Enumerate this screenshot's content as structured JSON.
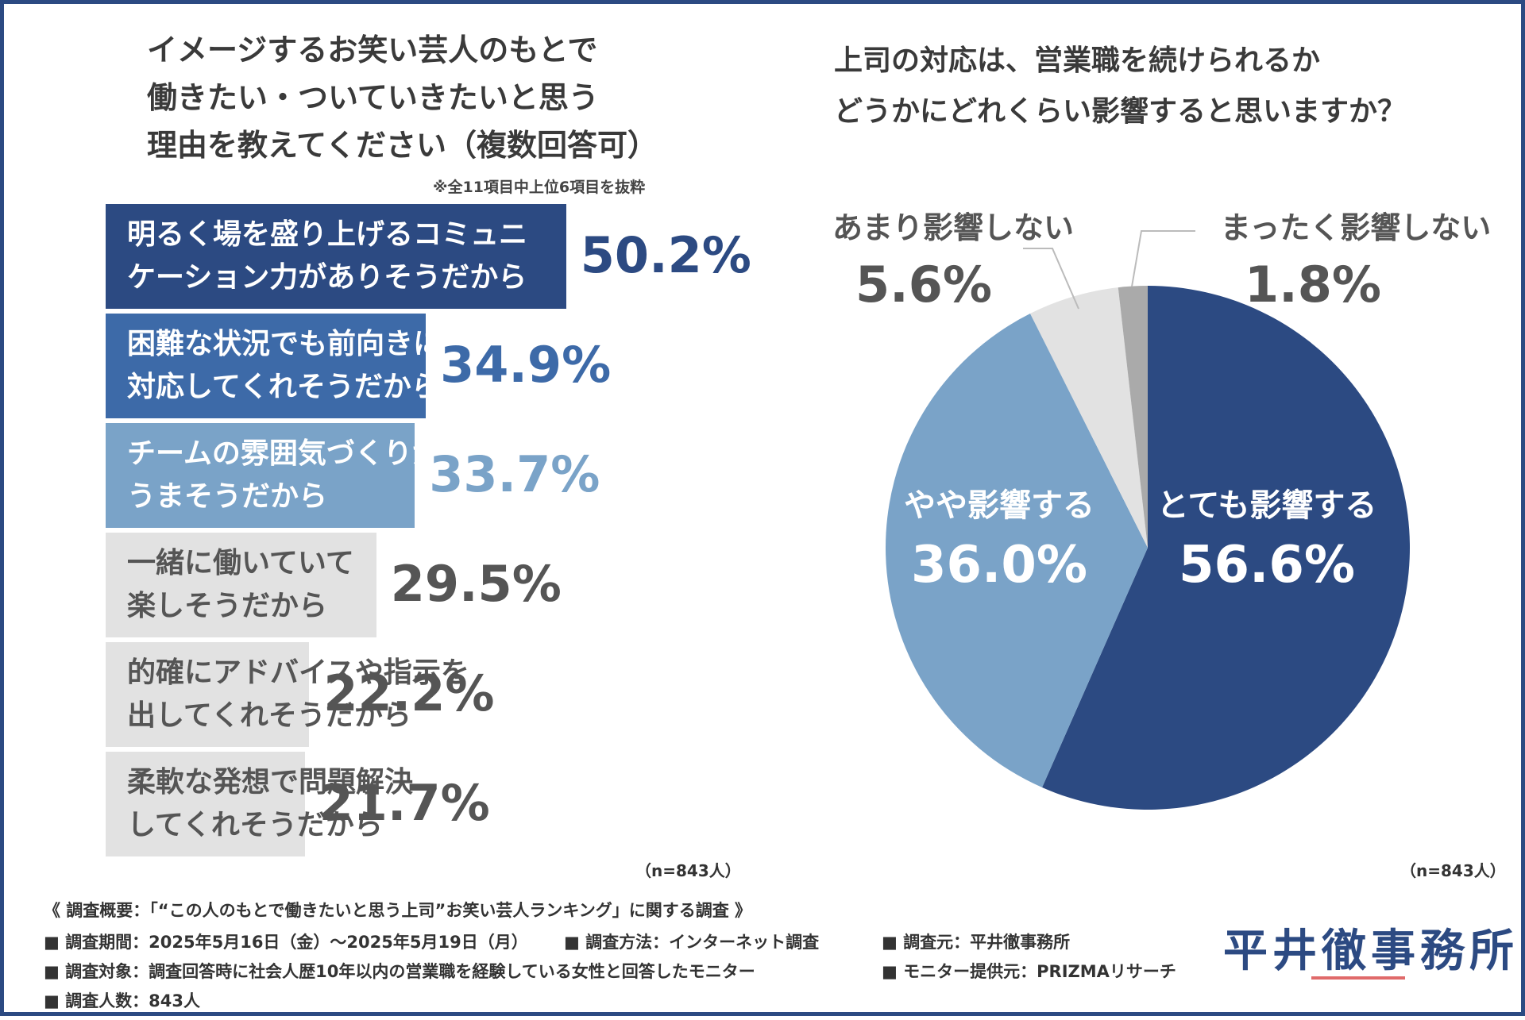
{
  "left_chart": {
    "title_lines": [
      "イメージするお笑い芸人のもとで",
      "働きたい・ついていきたいと思う",
      "理由を教えてください（複数回答可）"
    ],
    "note": "※全11項目中上位6項目を抜粋",
    "sample": "（n=843人）"
  },
  "right_chart": {
    "title_lines": [
      "上司の対応は、営業職を続けられるか",
      "どうかにどれくらい影響すると思いますか？"
    ],
    "sample": "（n=843人）"
  },
  "chart_data": [
    {
      "type": "bar",
      "orientation": "horizontal",
      "title": "イメージするお笑い芸人のもとで働きたい・ついていきたいと思う理由を教えてください（複数回答可）",
      "categories": [
        [
          "明るく場を盛り上げるコミュニ",
          "ケーション力がありそうだから"
        ],
        [
          "困難な状況でも前向きに",
          "対応してくれそうだから"
        ],
        [
          "チームの雰囲気づくりが",
          "うまそうだから"
        ],
        [
          "一緒に働いていて",
          "楽しそうだから"
        ],
        [
          "的確にアドバイスや指示を",
          "出してくれそうだから"
        ],
        [
          "柔軟な発想で問題解決",
          "してくれそうだから"
        ]
      ],
      "values": [
        50.2,
        34.9,
        33.7,
        29.5,
        22.2,
        21.7
      ],
      "value_labels": [
        "50.2%",
        "34.9%",
        "33.7%",
        "29.5%",
        "22.2%",
        "21.7%"
      ],
      "colors": [
        "#2c4a82",
        "#3d6aa8",
        "#7aa3c8",
        "#e2e2e2",
        "#e2e2e2",
        "#e2e2e2"
      ],
      "label_colors": [
        "#ffffff",
        "#ffffff",
        "#ffffff",
        "#555555",
        "#555555",
        "#555555"
      ],
      "value_colors": [
        "#2c4a82",
        "#3d6aa8",
        "#7aa3c8",
        "#555555",
        "#555555",
        "#555555"
      ]
    },
    {
      "type": "pie",
      "title": "上司の対応は、営業職を続けられるかどうかにどれくらい影響すると思いますか？",
      "slices": [
        {
          "label": "とても影響する",
          "value": 56.6,
          "value_label": "56.6%",
          "color": "#2c4a82"
        },
        {
          "label": "やや影響する",
          "value": 36.0,
          "value_label": "36.0%",
          "color": "#7aa3c8"
        },
        {
          "label": "あまり影響しない",
          "value": 5.6,
          "value_label": "5.6%",
          "color": "#e2e2e2"
        },
        {
          "label": "まったく影響しない",
          "value": 1.8,
          "value_label": "1.8%",
          "color": "#aaaaaa"
        }
      ]
    }
  ],
  "footer": {
    "overview": "《 調査概要：「“この人のもとで働きたいと思う上司”お笑い芸人ランキング」に関する調査 》",
    "period": "■ 調査期間：2025年5月16日（金）～2025年5月19日（月）",
    "method": "■ 調査方法：インターネット調査",
    "organizer": "■ 調査元：平井徹事務所",
    "target": "■ 調査対象：調査回答時に社会人歴10年以内の営業職を経験している女性と回答したモニター",
    "provider": "■ モニター提供元：PRIZMAリサーチ",
    "count": "■ 調査人数：843人",
    "logo": "平井徹事務所"
  }
}
